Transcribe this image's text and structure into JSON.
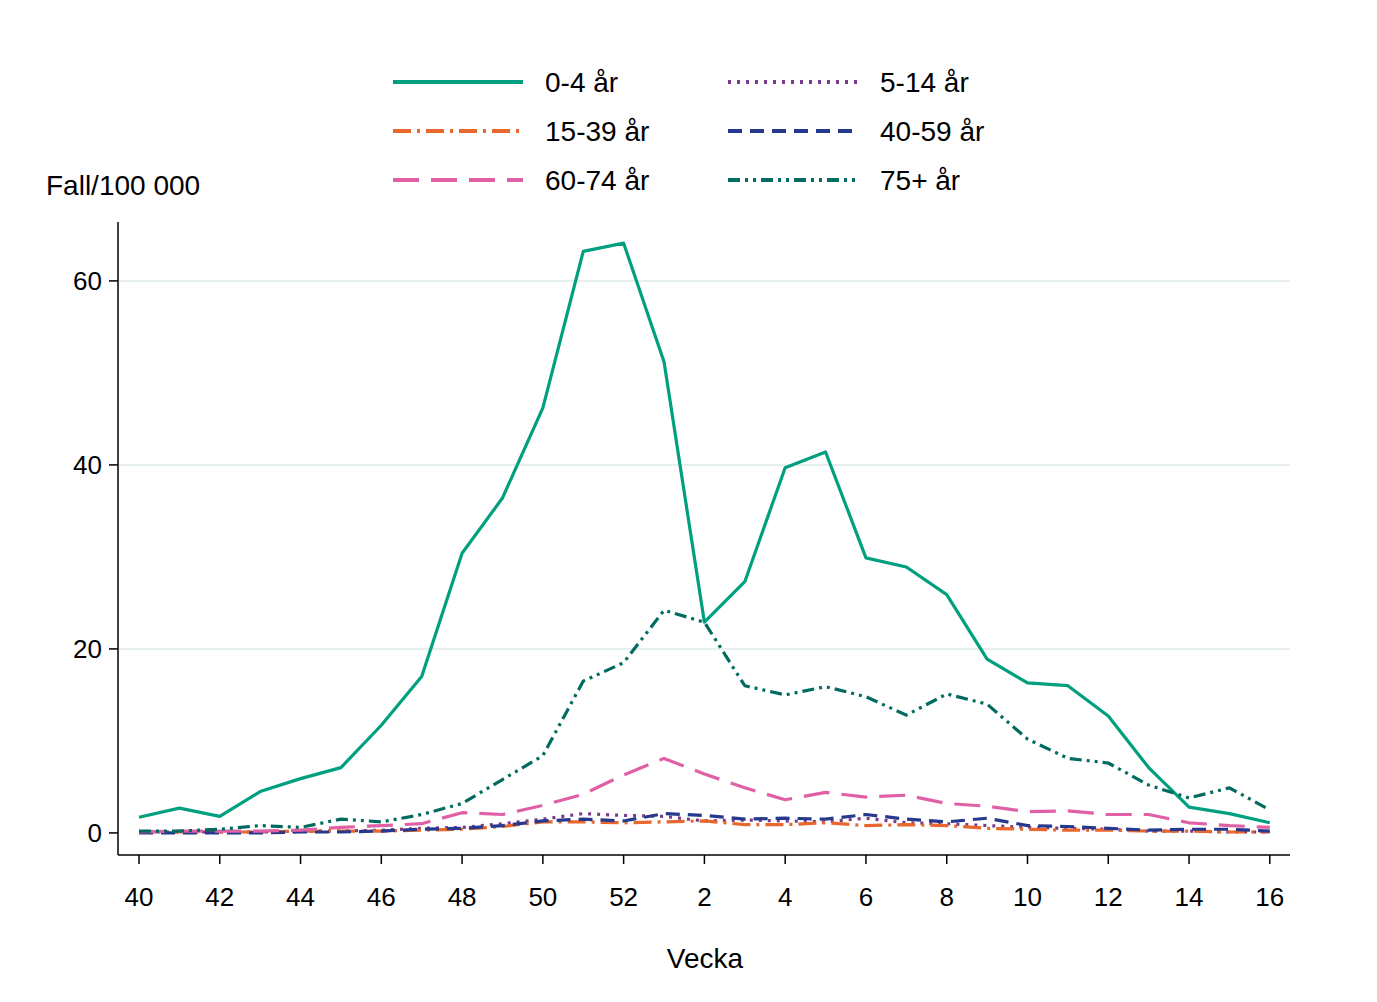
{
  "chart_data": {
    "type": "line",
    "y_label": "Fall/100 000",
    "x_label": "Vecka",
    "categories": [
      40,
      null,
      42,
      null,
      44,
      null,
      46,
      null,
      48,
      null,
      50,
      null,
      52,
      null,
      2,
      null,
      4,
      null,
      6,
      null,
      8,
      null,
      10,
      null,
      12,
      null,
      14,
      null,
      16
    ],
    "series": [
      {
        "name": "0-4 år",
        "color": "#00a07e",
        "line_style": "solid",
        "values": [
          1.7,
          2.7,
          1.8,
          4.5,
          5.9,
          7.1,
          11.7,
          17,
          30.4,
          36.4,
          46.2,
          63.2,
          64.1,
          51.2,
          22.9,
          27.3,
          39.7,
          41.4,
          29.9,
          28.9,
          25.9,
          18.9,
          16.3,
          16,
          12.7,
          7.1,
          2.8,
          2.1,
          1.1
        ]
      },
      {
        "name": "5-14 år",
        "color": "#7b3a8e",
        "line_style": "dotted",
        "values": [
          0.1,
          0.1,
          0.1,
          0.1,
          0.2,
          0.2,
          0.3,
          0.5,
          0.6,
          1,
          1.5,
          2.1,
          1.9,
          1.8,
          1.3,
          1.4,
          1.3,
          1.2,
          1.6,
          1.1,
          1,
          0.8,
          0.6,
          0.5,
          0.4,
          0.2,
          0.2,
          0.1,
          0.1
        ]
      },
      {
        "name": "15-39 år",
        "color": "#e8672c",
        "line_style": "dash-dot",
        "values": [
          0.1,
          0.1,
          0.1,
          0.1,
          0.2,
          0.2,
          0.2,
          0.3,
          0.4,
          0.7,
          1.2,
          1.2,
          1.1,
          1.2,
          1.3,
          0.9,
          0.9,
          1.1,
          0.8,
          0.9,
          0.8,
          0.5,
          0.4,
          0.3,
          0.3,
          0.2,
          0.2,
          0.1,
          0.1
        ]
      },
      {
        "name": "40-59 år",
        "color": "#26398c",
        "line_style": "dashed",
        "values": [
          0,
          0,
          0,
          0,
          0.1,
          0.1,
          0.2,
          0.4,
          0.5,
          0.8,
          1.3,
          1.5,
          1.3,
          2.1,
          1.9,
          1.5,
          1.6,
          1.5,
          2,
          1.5,
          1.2,
          1.6,
          0.8,
          0.7,
          0.5,
          0.3,
          0.4,
          0.4,
          0.2
        ]
      },
      {
        "name": "60-74 år",
        "color": "#e060a6",
        "line_style": "long-dash",
        "values": [
          0.1,
          0.2,
          0.2,
          0.2,
          0.3,
          0.6,
          0.8,
          1,
          2.2,
          2,
          3,
          4.2,
          6.3,
          8.1,
          6.4,
          4.9,
          3.6,
          4.4,
          3.9,
          4.1,
          3.2,
          2.9,
          2.3,
          2.4,
          2,
          2,
          1.1,
          0.8,
          0.6
        ]
      },
      {
        "name": "75+ år",
        "color": "#006b5e",
        "line_style": "dash-dot-dot",
        "values": [
          0.2,
          0.2,
          0.4,
          0.8,
          0.6,
          1.5,
          1.2,
          2,
          3.2,
          5.8,
          8.4,
          16.5,
          18.5,
          24.2,
          22.9,
          16,
          15,
          15.9,
          14.8,
          12.8,
          15.1,
          14,
          10.2,
          8.1,
          7.6,
          5.2,
          3.8,
          4.9,
          2.5
        ]
      }
    ],
    "ylim": [
      -2.4,
      66.4
    ],
    "yticks": [
      0,
      20,
      40,
      60
    ],
    "grid": true,
    "legend": "top"
  }
}
